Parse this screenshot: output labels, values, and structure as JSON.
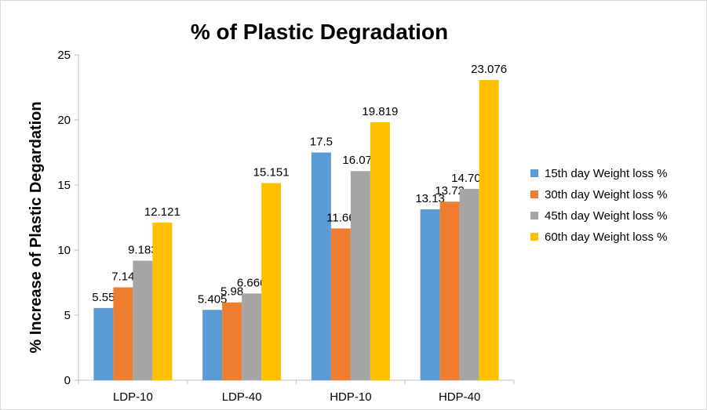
{
  "chart_data": {
    "type": "bar",
    "title": "% of Plastic Degradation",
    "xlabel": "",
    "ylabel": "% Increase of Plastic Degardation",
    "categories": [
      "LDP-10",
      "LDP-40",
      "HDP-10",
      "HDP-40"
    ],
    "ylim": [
      0,
      25
    ],
    "yticks": [
      0,
      5,
      10,
      15,
      20,
      25
    ],
    "grid": false,
    "legend_position": "right",
    "series": [
      {
        "name": "15th day Weight loss %",
        "color": "#5b9bd5",
        "values": [
          5.55,
          5.405,
          17.5,
          13.13
        ],
        "labels": [
          "5.55",
          "5.405",
          "17.5",
          "13.13"
        ]
      },
      {
        "name": "30th day Weight loss %",
        "color": "#ed7d31",
        "values": [
          7.14,
          5.98,
          11.66,
          13.72
        ],
        "labels": [
          "7.14",
          "5.98",
          "11.66",
          "13.72"
        ]
      },
      {
        "name": "45th day Weight loss %",
        "color": "#a5a5a5",
        "values": [
          9.183,
          6.666,
          16.071,
          14.705
        ],
        "labels": [
          "9.183",
          "6.666",
          "16.071",
          "14.705"
        ]
      },
      {
        "name": "60th day Weight loss %",
        "color": "#ffc000",
        "values": [
          12.121,
          15.151,
          19.819,
          23.076
        ],
        "labels": [
          "12.121",
          "15.151",
          "19.819",
          "23.076"
        ]
      }
    ]
  }
}
